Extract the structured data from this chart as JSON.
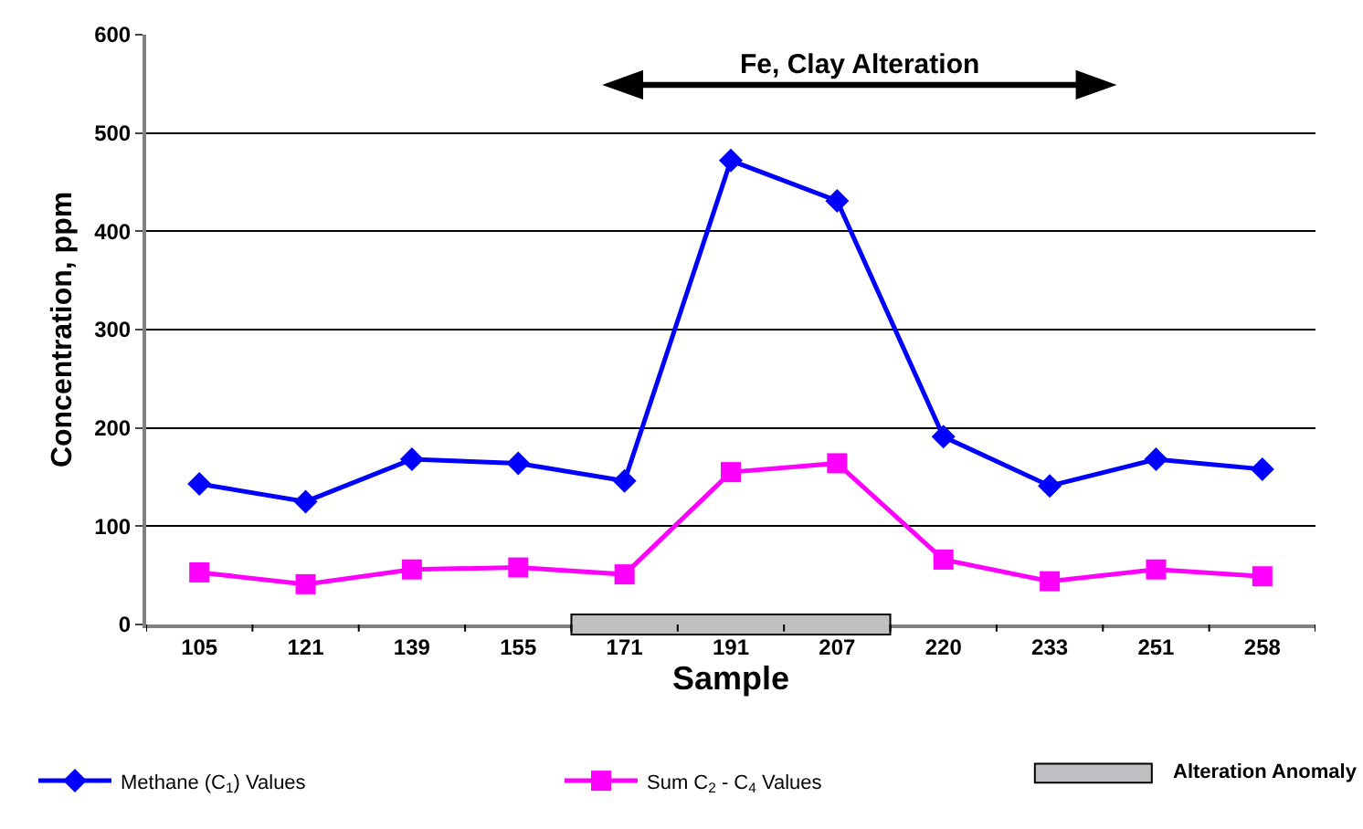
{
  "chart_data": {
    "type": "line",
    "xlabel": "Sample",
    "ylabel": "Concentration, ppm",
    "categories": [
      "105",
      "121",
      "139",
      "155",
      "171",
      "191",
      "207",
      "220",
      "233",
      "251",
      "258"
    ],
    "series": [
      {
        "name": "Methane (C$_{1}$) Values",
        "color": "#0000ff",
        "marker": "diamond",
        "values": [
          143,
          125,
          168,
          164,
          146,
          472,
          431,
          191,
          141,
          168,
          158
        ]
      },
      {
        "name": "Sum C$_{2}$ - C$_{4}$ Values",
        "color": "#ff00ff",
        "marker": "square",
        "values": [
          53,
          41,
          56,
          58,
          51,
          155,
          164,
          66,
          44,
          56,
          49
        ]
      }
    ],
    "annotations": [
      "Fe, Clay Alteration",
      "Alteration Anomaly"
    ],
    "ylim": [
      0,
      600
    ],
    "yticks": [
      0,
      100,
      200,
      300,
      400,
      500,
      600
    ],
    "grid": "y",
    "legend": "bottom",
    "line_style": "solid"
  }
}
